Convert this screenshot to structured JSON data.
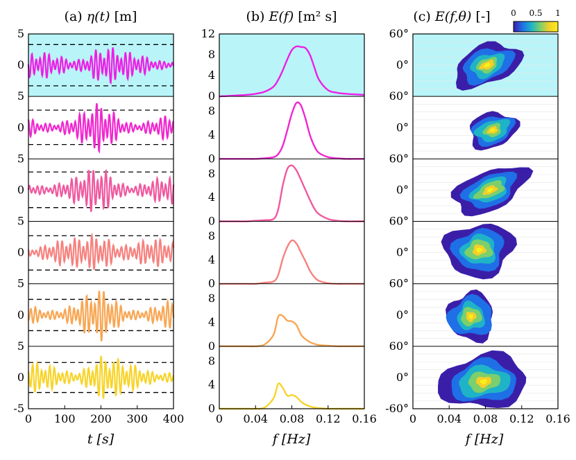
{
  "figure": {
    "panel_titles": {
      "a": {
        "prefix": "(a)",
        "symbol": "η(t)",
        "unit": "[m]"
      },
      "b": {
        "prefix": "(b)",
        "symbol": "E(f)",
        "unit": "[m² s]"
      },
      "c": {
        "prefix": "(c)",
        "symbol": "E(f,θ)",
        "unit": "[-]"
      }
    },
    "x_labels": {
      "a": "t [s]",
      "b": "f [Hz]",
      "c": "f [Hz]"
    },
    "colorbar": {
      "ticks": [
        "0",
        "0.5",
        "1"
      ],
      "colors": [
        "#3b1ea8",
        "#1f6fe6",
        "#1fb3c7",
        "#7bcf6d",
        "#f2cf2a",
        "#f9f018"
      ]
    },
    "highlight_color": "#b9f5f8",
    "row_colors": [
      "#ee1ee6",
      "#f027cf",
      "#f0589f",
      "#f6817e",
      "#f8a653",
      "#f8d42a"
    ]
  },
  "chart_data": [
    {
      "type": "line",
      "title": "(a) η(t) [m]",
      "xlabel": "t [s]",
      "ylabel": "",
      "xlim": [
        0,
        400
      ],
      "ylim_per_row": [
        -5,
        5
      ],
      "x_ticks": [
        0,
        100,
        200,
        300,
        400
      ],
      "y_tick_labels": [
        "5",
        "0",
        "5",
        "0",
        "5",
        "0",
        "5",
        "0",
        "5",
        "0",
        "5",
        "0",
        "-5"
      ],
      "rows": 6,
      "highlighted_row": 0,
      "series": [
        {
          "amplitude_scale": 2.8,
          "dashed_bounds": [
            -3.3,
            3.3
          ]
        },
        {
          "amplitude_scale": 3.0,
          "dashed_bounds": [
            -2.7,
            2.8
          ]
        },
        {
          "amplitude_scale": 3.0,
          "dashed_bounds": [
            -2.8,
            2.9
          ]
        },
        {
          "amplitude_scale": 3.0,
          "dashed_bounds": [
            -2.8,
            2.7
          ]
        },
        {
          "amplitude_scale": 3.2,
          "dashed_bounds": [
            -2.5,
            2.5
          ]
        },
        {
          "amplitude_scale": 3.1,
          "dashed_bounds": [
            -2.4,
            2.4
          ]
        }
      ]
    },
    {
      "type": "line",
      "title": "(b) E(f) [m² s]",
      "xlabel": "f [Hz]",
      "ylabel": "",
      "xlim": [
        0,
        0.16
      ],
      "x_ticks": [
        "0",
        "0.04",
        "0.08",
        "0.12",
        "0.16"
      ],
      "y_tick_labels_top": [
        "12",
        "8",
        "4",
        "0"
      ],
      "y_tick_labels_row": [
        "8",
        "4",
        "0"
      ],
      "rows": 6,
      "highlighted_row": 0,
      "x": [
        0,
        0.01,
        0.02,
        0.03,
        0.04,
        0.05,
        0.06,
        0.065,
        0.07,
        0.075,
        0.08,
        0.085,
        0.09,
        0.095,
        0.1,
        0.105,
        0.11,
        0.12,
        0.13,
        0.14,
        0.15,
        0.16
      ],
      "series": [
        {
          "values": [
            0.0,
            0.1,
            0.2,
            0.3,
            0.5,
            0.9,
            1.9,
            3.2,
            5.0,
            7.1,
            8.9,
            9.6,
            9.5,
            9.3,
            8.0,
            5.5,
            3.2,
            1.2,
            0.7,
            0.5,
            0.4,
            0.3
          ]
        },
        {
          "values": [
            0.0,
            0.0,
            0.0,
            0.0,
            0.0,
            0.1,
            0.3,
            0.8,
            2.2,
            4.8,
            7.6,
            9.4,
            9.0,
            6.8,
            4.0,
            2.1,
            1.0,
            0.3,
            0.1,
            0.0,
            0.0,
            0.0
          ]
        },
        {
          "values": [
            0.0,
            0.0,
            0.0,
            0.0,
            0.1,
            0.2,
            0.4,
            2.0,
            6.0,
            8.8,
            9.4,
            8.6,
            7.0,
            5.3,
            3.6,
            2.1,
            1.2,
            0.4,
            0.1,
            0.0,
            0.0,
            0.0
          ]
        },
        {
          "values": [
            0.0,
            0.0,
            0.0,
            0.0,
            0.0,
            0.2,
            0.4,
            1.5,
            4.2,
            6.2,
            7.3,
            6.8,
            5.3,
            3.8,
            2.2,
            1.1,
            0.5,
            0.1,
            0.0,
            0.0,
            0.0,
            0.0
          ]
        },
        {
          "values": [
            0.0,
            0.0,
            0.0,
            0.0,
            0.0,
            0.3,
            2.0,
            5.0,
            5.1,
            4.3,
            4.2,
            3.6,
            2.0,
            1.2,
            0.7,
            0.4,
            0.2,
            0.1,
            0.0,
            0.0,
            0.0,
            0.0
          ]
        },
        {
          "values": [
            0.0,
            0.0,
            0.0,
            0.0,
            0.0,
            0.2,
            1.8,
            4.2,
            3.5,
            2.2,
            2.3,
            2.0,
            1.2,
            0.7,
            0.4,
            0.2,
            0.1,
            0.0,
            0.0,
            0.0,
            0.0,
            0.0
          ]
        }
      ]
    },
    {
      "type": "heatmap",
      "title": "(c) E(f,θ) [-]",
      "xlabel": "f [Hz]",
      "ylabel": "",
      "xlim": [
        0,
        0.16
      ],
      "x_ticks": [
        "0",
        "0.04",
        "0.08",
        "0.12",
        "0.16"
      ],
      "y_tick_labels": [
        "60°",
        "0°",
        "60°",
        "0°",
        "60°",
        "0°",
        "60°",
        "0°",
        "60°",
        "0°",
        "60°",
        "0°",
        "-60°"
      ],
      "rows": 6,
      "highlighted_row": 0,
      "color_range": [
        0,
        1
      ],
      "peaks": [
        {
          "f": 0.082,
          "theta": 0,
          "f_spread": 0.02,
          "theta_spread": 22,
          "tilt": 0.55
        },
        {
          "f": 0.088,
          "theta": -5,
          "f_spread": 0.016,
          "theta_spread": 20,
          "tilt": 0.45
        },
        {
          "f": 0.085,
          "theta": 0,
          "f_spread": 0.022,
          "theta_spread": 22,
          "tilt": 0.6
        },
        {
          "f": 0.073,
          "theta": 5,
          "f_spread": 0.02,
          "theta_spread": 30,
          "tilt": 0.2
        },
        {
          "f": 0.064,
          "theta": -3,
          "f_spread": 0.015,
          "theta_spread": 28,
          "tilt": 0.3
        },
        {
          "f": 0.078,
          "theta": -8,
          "f_spread": 0.025,
          "theta_spread": 30,
          "tilt": 0.15
        }
      ]
    }
  ]
}
